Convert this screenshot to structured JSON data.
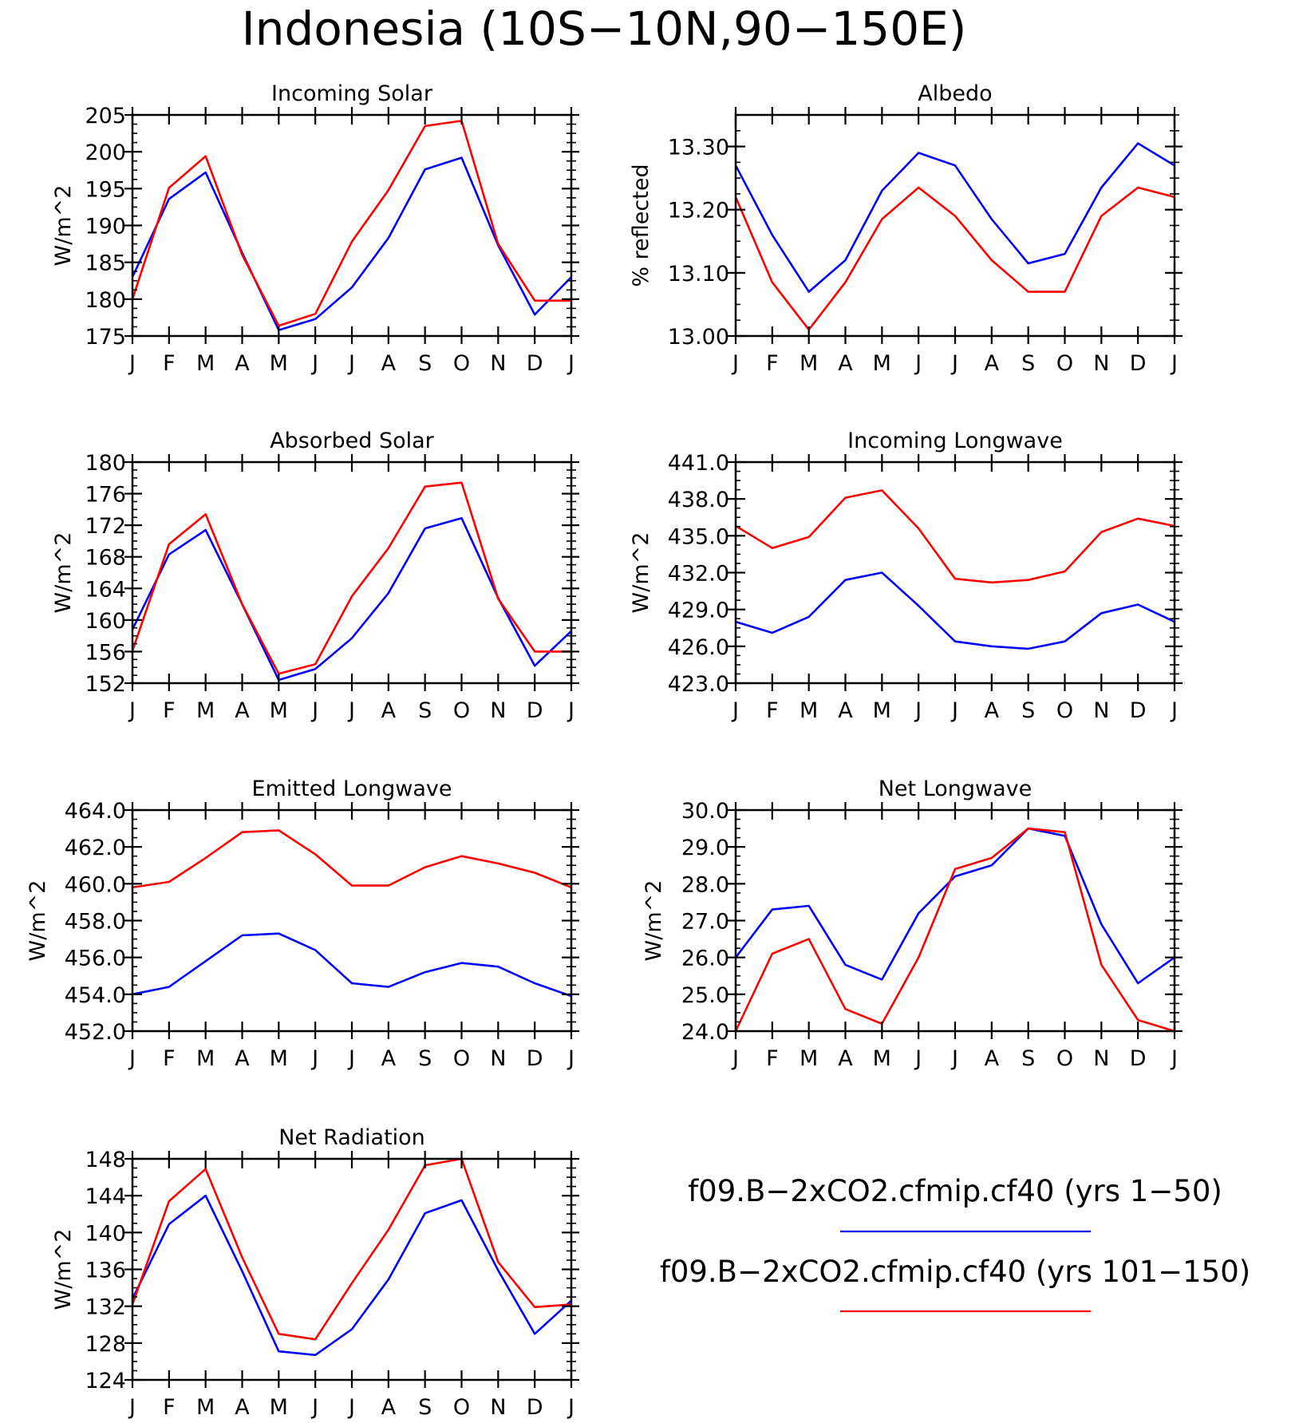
{
  "figure": {
    "title": "Indonesia (10S−10N,90−150E)"
  },
  "colors": {
    "series_1": "#0000ff",
    "series_2": "#ff0000",
    "axes": "#000000"
  },
  "legend": {
    "placement": "lower-right",
    "entries": [
      {
        "label": "f09.B−2xCO2.cfmip.cf40 (yrs 1−50)",
        "color": "#0000ff"
      },
      {
        "label": "f09.B−2xCO2.cfmip.cf40 (yrs 101−150)",
        "color": "#ff0000"
      }
    ]
  },
  "chart_data": [
    {
      "type": "line",
      "title": "Incoming Solar",
      "ylabel": "W/m^2",
      "x": [
        "J",
        "F",
        "M",
        "A",
        "M",
        "J",
        "J",
        "A",
        "S",
        "O",
        "N",
        "D",
        "J"
      ],
      "ylim": [
        175,
        205
      ],
      "yticks": [
        175,
        180,
        185,
        190,
        195,
        200,
        205
      ],
      "ytick_labels": [
        "175",
        "180",
        "185",
        "190",
        "195",
        "200",
        "205"
      ],
      "series": [
        {
          "color": "#0000ff",
          "values": [
            183.0,
            193.6,
            197.2,
            186.3,
            175.8,
            177.3,
            181.6,
            188.3,
            197.6,
            199.2,
            187.3,
            177.9,
            183.0
          ]
        },
        {
          "color": "#ff0000",
          "values": [
            180.0,
            195.1,
            199.4,
            186.0,
            176.4,
            178.0,
            187.8,
            194.8,
            203.5,
            204.2,
            187.5,
            179.8,
            179.8
          ]
        }
      ]
    },
    {
      "type": "line",
      "title": "Albedo",
      "ylabel": "% reflected",
      "x": [
        "J",
        "F",
        "M",
        "A",
        "M",
        "J",
        "J",
        "A",
        "S",
        "O",
        "N",
        "D",
        "J"
      ],
      "ylim": [
        13.0,
        13.35
      ],
      "yticks": [
        13.0,
        13.1,
        13.2,
        13.3
      ],
      "ytick_labels": [
        "13.00",
        "13.10",
        "13.20",
        "13.30"
      ],
      "series": [
        {
          "color": "#0000ff",
          "values": [
            13.27,
            13.16,
            13.07,
            13.12,
            13.23,
            13.29,
            13.27,
            13.185,
            13.115,
            13.13,
            13.235,
            13.305,
            13.27
          ]
        },
        {
          "color": "#ff0000",
          "values": [
            13.22,
            13.085,
            13.01,
            13.085,
            13.185,
            13.235,
            13.19,
            13.12,
            13.07,
            13.07,
            13.19,
            13.235,
            13.22
          ]
        }
      ]
    },
    {
      "type": "line",
      "title": "Absorbed Solar",
      "ylabel": "W/m^2",
      "x": [
        "J",
        "F",
        "M",
        "A",
        "M",
        "J",
        "J",
        "A",
        "S",
        "O",
        "N",
        "D",
        "J"
      ],
      "ylim": [
        152,
        180
      ],
      "yticks": [
        152,
        156,
        160,
        164,
        168,
        172,
        176,
        180
      ],
      "ytick_labels": [
        "152",
        "156",
        "160",
        "164",
        "168",
        "172",
        "176",
        "180"
      ],
      "series": [
        {
          "color": "#0000ff",
          "values": [
            158.8,
            168.3,
            171.4,
            162.0,
            152.4,
            153.8,
            157.7,
            163.4,
            171.6,
            172.9,
            162.8,
            154.2,
            158.6
          ]
        },
        {
          "color": "#ff0000",
          "values": [
            156.1,
            169.6,
            173.4,
            162.0,
            153.2,
            154.4,
            163.0,
            169.1,
            176.9,
            177.4,
            162.7,
            156.0,
            156.0
          ]
        }
      ]
    },
    {
      "type": "line",
      "title": "Incoming Longwave",
      "ylabel": "W/m^2",
      "x": [
        "J",
        "F",
        "M",
        "A",
        "M",
        "J",
        "J",
        "A",
        "S",
        "O",
        "N",
        "D",
        "J"
      ],
      "ylim": [
        423,
        441
      ],
      "yticks": [
        423,
        426,
        429,
        432,
        435,
        438,
        441
      ],
      "ytick_labels": [
        "423.0",
        "426.0",
        "429.0",
        "432.0",
        "435.0",
        "438.0",
        "441.0"
      ],
      "series": [
        {
          "color": "#0000ff",
          "values": [
            428.0,
            427.1,
            428.4,
            431.4,
            432.0,
            429.3,
            426.4,
            426.0,
            425.8,
            426.4,
            428.7,
            429.4,
            428.0
          ]
        },
        {
          "color": "#ff0000",
          "values": [
            435.8,
            434.0,
            434.9,
            438.1,
            438.7,
            435.6,
            431.5,
            431.2,
            431.4,
            432.1,
            435.3,
            436.4,
            435.8
          ]
        }
      ]
    },
    {
      "type": "line",
      "title": "Emitted Longwave",
      "ylabel": "W/m^2",
      "x": [
        "J",
        "F",
        "M",
        "A",
        "M",
        "J",
        "J",
        "A",
        "S",
        "O",
        "N",
        "D",
        "J"
      ],
      "ylim": [
        452,
        464
      ],
      "yticks": [
        452,
        454,
        456,
        458,
        460,
        462,
        464
      ],
      "ytick_labels": [
        "452.0",
        "454.0",
        "456.0",
        "458.0",
        "460.0",
        "462.0",
        "464.0"
      ],
      "series": [
        {
          "color": "#0000ff",
          "values": [
            454.0,
            454.4,
            455.8,
            457.2,
            457.3,
            456.4,
            454.6,
            454.4,
            455.2,
            455.7,
            455.5,
            454.6,
            453.9
          ]
        },
        {
          "color": "#ff0000",
          "values": [
            459.8,
            460.1,
            461.4,
            462.8,
            462.9,
            461.6,
            459.9,
            459.9,
            460.9,
            461.5,
            461.1,
            460.6,
            459.8
          ]
        }
      ]
    },
    {
      "type": "line",
      "title": "Net Longwave",
      "ylabel": "W/m^2",
      "x": [
        "J",
        "F",
        "M",
        "A",
        "M",
        "J",
        "J",
        "A",
        "S",
        "O",
        "N",
        "D",
        "J"
      ],
      "ylim": [
        24,
        30
      ],
      "yticks": [
        24,
        25,
        26,
        27,
        28,
        29,
        30
      ],
      "ytick_labels": [
        "24.0",
        "25.0",
        "26.0",
        "27.0",
        "28.0",
        "29.0",
        "30.0"
      ],
      "series": [
        {
          "color": "#0000ff",
          "values": [
            26.0,
            27.3,
            27.4,
            25.8,
            25.4,
            27.2,
            28.2,
            28.5,
            29.5,
            29.3,
            26.9,
            25.3,
            26.0
          ]
        },
        {
          "color": "#ff0000",
          "values": [
            24.0,
            26.1,
            26.5,
            24.6,
            24.2,
            26.0,
            28.4,
            28.7,
            29.5,
            29.4,
            25.8,
            24.3,
            24.0
          ]
        }
      ]
    },
    {
      "type": "line",
      "title": "Net Radiation",
      "ylabel": "W/m^2",
      "x": [
        "J",
        "F",
        "M",
        "A",
        "M",
        "J",
        "J",
        "A",
        "S",
        "O",
        "N",
        "D",
        "J"
      ],
      "ylim": [
        124,
        148
      ],
      "yticks": [
        124,
        128,
        132,
        136,
        140,
        144,
        148
      ],
      "ytick_labels": [
        "124",
        "128",
        "132",
        "136",
        "140",
        "144",
        "148"
      ],
      "series": [
        {
          "color": "#0000ff",
          "values": [
            132.8,
            140.9,
            144.0,
            135.8,
            127.1,
            126.7,
            129.5,
            134.9,
            142.1,
            143.5,
            135.9,
            129.0,
            132.6
          ]
        },
        {
          "color": "#ff0000",
          "values": [
            132.2,
            143.4,
            146.9,
            137.3,
            129.0,
            128.4,
            134.5,
            140.3,
            147.3,
            148.0,
            136.8,
            131.9,
            132.2
          ]
        }
      ]
    }
  ]
}
